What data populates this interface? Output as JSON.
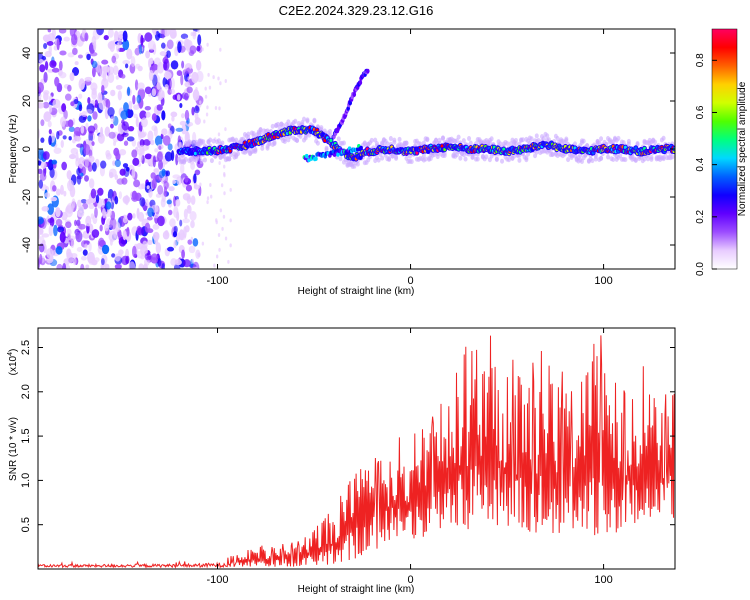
{
  "title": "C2E2.2024.329.23.12.G16",
  "chart_data": [
    {
      "type": "heatmap",
      "title": "C2E2.2024.329.23.12.G16",
      "xlabel": "Height of straight line (km)",
      "ylabel": "Frequency (Hz)",
      "xlim": [
        -193,
        137
      ],
      "ylim": [
        -50,
        50
      ],
      "xticks": [
        -100,
        0,
        100
      ],
      "yticks": [
        -40,
        -20,
        0,
        20,
        40
      ],
      "colorbar": {
        "label": "Normalized spectral amplitude",
        "range": [
          0,
          0.92
        ],
        "ticks": [
          "0.0",
          "0.2",
          "0.4",
          "0.6",
          "0.8"
        ],
        "colormap": [
          "#ffffff",
          "#e8ccff",
          "#9c4dff",
          "#6000ff",
          "#1000ff",
          "#0060ff",
          "#00d8ff",
          "#00ff80",
          "#50ff00",
          "#d0ff00",
          "#ffd000",
          "#ff6000",
          "#ff0000",
          "#ff0060"
        ]
      },
      "ridge": {
        "x": [
          -120,
          -110,
          -100,
          -90,
          -80,
          -70,
          -60,
          -50,
          -40,
          -30,
          -22,
          -10,
          0,
          10,
          20,
          30,
          40,
          50,
          60,
          70,
          80,
          90,
          100,
          110,
          120,
          130,
          137
        ],
        "y": [
          -1,
          -1,
          -0.5,
          0.5,
          3,
          6,
          8,
          8,
          2,
          -4,
          -1,
          0,
          -1,
          0,
          1,
          0,
          0,
          -1,
          0,
          2,
          0,
          -1,
          0,
          0,
          -1,
          0,
          0
        ]
      },
      "branch": {
        "x": [
          -40,
          -35,
          -30,
          -25,
          -22
        ],
        "y": [
          5,
          12,
          22,
          30,
          33
        ]
      },
      "noise_region_x": [
        -193,
        -115
      ]
    },
    {
      "type": "line",
      "xlabel": "Height of straight line (km)",
      "ylabel": "SNR (10 * v/v)",
      "exponent_label": "(x10",
      "exponent_power": "4",
      "exponent_close": ")",
      "xlim": [
        -193,
        137
      ],
      "ylim": [
        0,
        2.72
      ],
      "xticks": [
        -100,
        0,
        100
      ],
      "yticks": [
        0.5,
        1.0,
        1.5,
        2.0,
        2.5
      ],
      "line_color": "#ee2222",
      "envelope": {
        "x": [
          -193,
          -120,
          -100,
          -90,
          -80,
          -60,
          -50,
          -40,
          -30,
          -20,
          -10,
          0,
          10,
          20,
          30,
          40,
          50,
          60,
          70,
          80,
          90,
          100,
          110,
          120,
          130,
          137
        ],
        "y": [
          0.07,
          0.08,
          0.1,
          0.17,
          0.25,
          0.3,
          0.45,
          0.7,
          1.05,
          1.3,
          1.45,
          1.55,
          1.75,
          2.3,
          2.55,
          2.75,
          2.3,
          2.2,
          2.4,
          2.1,
          2.35,
          2.55,
          2.0,
          2.35,
          1.85,
          2.2
        ]
      },
      "floor": {
        "x": [
          -193,
          -50,
          -40,
          -30,
          -20,
          -10,
          0,
          10,
          20,
          40,
          60,
          80,
          100,
          120,
          137
        ],
        "y": [
          0.02,
          0.02,
          0.05,
          0.1,
          0.2,
          0.3,
          0.3,
          0.35,
          0.4,
          0.45,
          0.4,
          0.4,
          0.35,
          0.45,
          0.55
        ]
      }
    }
  ]
}
